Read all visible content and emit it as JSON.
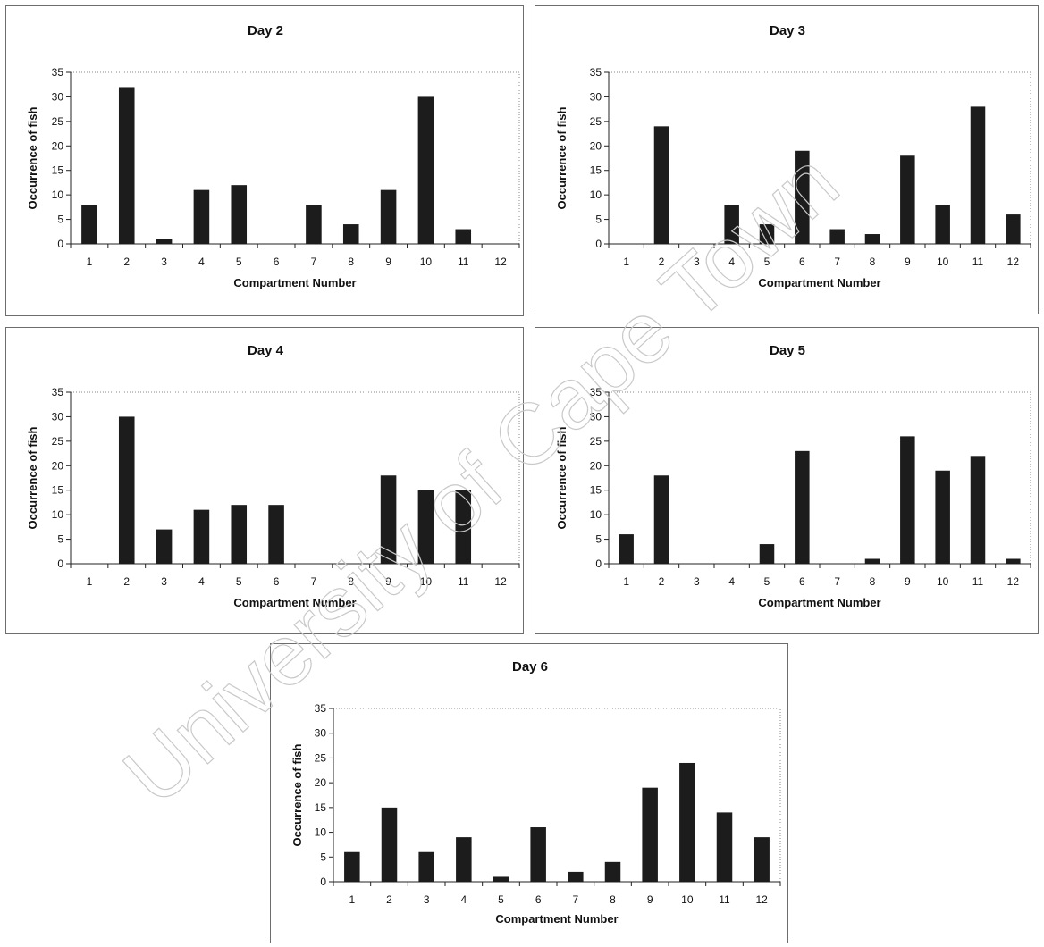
{
  "watermark_text": "University of Cape Town",
  "colors": {
    "bar": "#1c1c1c",
    "axis": "#222222",
    "plot_border": "#8a8a8a"
  },
  "chart_data": [
    {
      "type": "bar",
      "title": "Day 2",
      "xlabel": "Compartment Number",
      "ylabel": "Occurrence of fish",
      "categories": [
        "1",
        "2",
        "3",
        "4",
        "5",
        "6",
        "7",
        "8",
        "9",
        "10",
        "11",
        "12"
      ],
      "values": [
        8,
        32,
        1,
        11,
        12,
        0,
        8,
        4,
        11,
        30,
        3,
        0
      ],
      "ylim": [
        0,
        35
      ],
      "yticks": [
        "0",
        "5",
        "10",
        "15",
        "20",
        "25",
        "30",
        "35"
      ],
      "grid": false
    },
    {
      "type": "bar",
      "title": "Day 3",
      "xlabel": "Compartment Number",
      "ylabel": "Occurrence of fish",
      "categories": [
        "1",
        "2",
        "3",
        "4",
        "5",
        "6",
        "7",
        "8",
        "9",
        "10",
        "11",
        "12"
      ],
      "values": [
        0,
        24,
        0,
        8,
        4,
        19,
        3,
        2,
        18,
        8,
        28,
        6
      ],
      "ylim": [
        0,
        35
      ],
      "yticks": [
        "0",
        "5",
        "10",
        "15",
        "20",
        "25",
        "30",
        "35"
      ],
      "grid": false
    },
    {
      "type": "bar",
      "title": "Day 4",
      "xlabel": "Compartment Number",
      "ylabel": "Occurrence of fish",
      "categories": [
        "1",
        "2",
        "3",
        "4",
        "5",
        "6",
        "7",
        "8",
        "9",
        "10",
        "11",
        "12"
      ],
      "values": [
        0,
        30,
        7,
        11,
        12,
        12,
        0,
        0,
        18,
        15,
        15,
        0
      ],
      "ylim": [
        0,
        35
      ],
      "yticks": [
        "0",
        "5",
        "10",
        "15",
        "20",
        "25",
        "30",
        "35"
      ],
      "grid": false
    },
    {
      "type": "bar",
      "title": "Day 5",
      "xlabel": "Compartment Number",
      "ylabel": "Occurrence of fish",
      "categories": [
        "1",
        "2",
        "3",
        "4",
        "5",
        "6",
        "7",
        "8",
        "9",
        "10",
        "11",
        "12"
      ],
      "values": [
        6,
        18,
        0,
        0,
        4,
        23,
        0,
        1,
        26,
        19,
        22,
        1
      ],
      "ylim": [
        0,
        35
      ],
      "yticks": [
        "0",
        "5",
        "10",
        "15",
        "20",
        "25",
        "30",
        "35"
      ],
      "grid": false
    },
    {
      "type": "bar",
      "title": "Day 6",
      "xlabel": "Compartment Number",
      "ylabel": "Occurrence of fish",
      "categories": [
        "1",
        "2",
        "3",
        "4",
        "5",
        "6",
        "7",
        "8",
        "9",
        "10",
        "11",
        "12"
      ],
      "values": [
        6,
        15,
        6,
        9,
        1,
        11,
        2,
        4,
        19,
        24,
        14,
        9
      ],
      "ylim": [
        0,
        35
      ],
      "yticks": [
        "0",
        "5",
        "10",
        "15",
        "20",
        "25",
        "30",
        "35"
      ],
      "grid": false
    }
  ]
}
